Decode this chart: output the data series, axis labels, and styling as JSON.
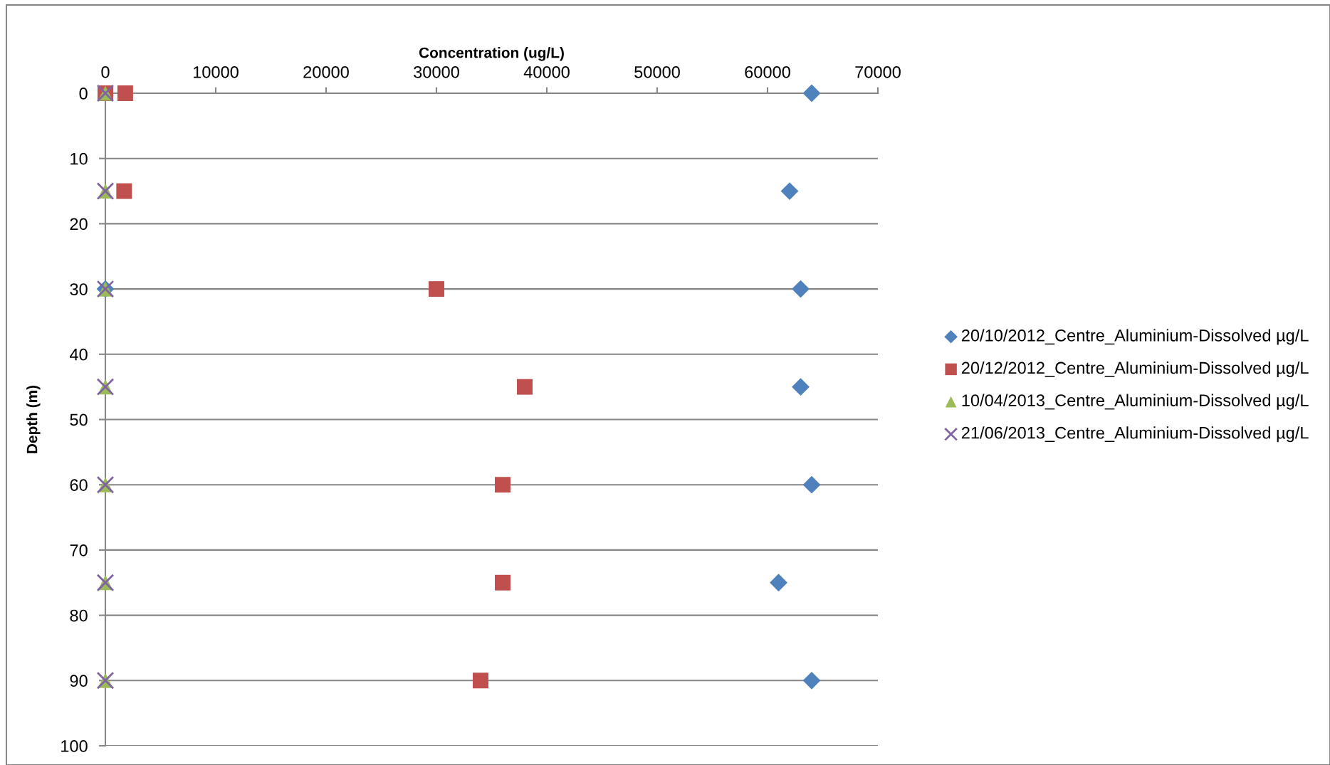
{
  "chart_data": {
    "type": "scatter",
    "xlabel": "Concentration (ug/L)",
    "ylabel": "Depth (m)",
    "xlim": [
      0,
      70000
    ],
    "xticks": [
      0,
      10000,
      20000,
      30000,
      40000,
      50000,
      60000,
      70000
    ],
    "ylim": [
      100,
      0
    ],
    "yticks": [
      0,
      10,
      20,
      30,
      40,
      50,
      60,
      70,
      80,
      90,
      100
    ],
    "grid": "y",
    "legend": "right",
    "series": [
      {
        "name": "20/10/2012_Centre_Aluminium-Dissolved µg/L",
        "color": "#4f81bd",
        "marker": "diamond",
        "x": [
          64000,
          62000,
          0,
          63000,
          63000,
          64000,
          61000,
          64000
        ],
        "values": [
          0,
          15,
          30,
          30,
          45,
          60,
          75,
          90
        ]
      },
      {
        "name": "20/12/2012_Centre_Aluminium-Dissolved µg/L",
        "color": "#c0504d",
        "marker": "square",
        "x": [
          0,
          1800,
          1700,
          30000,
          38000,
          36000,
          36000,
          34000
        ],
        "values": [
          0,
          0,
          15,
          30,
          45,
          60,
          75,
          90
        ]
      },
      {
        "name": "10/04/2013_Centre_Aluminium-Dissolved µg/L",
        "color": "#9bbb59",
        "marker": "triangle",
        "x": [
          0,
          0,
          0,
          0,
          0,
          0,
          0
        ],
        "values": [
          0,
          15,
          30,
          45,
          60,
          75,
          90
        ]
      },
      {
        "name": "21/06/2013_Centre_Aluminium-Dissolved µg/L",
        "color": "#8064a2",
        "marker": "cross",
        "x": [
          0,
          0,
          0,
          0,
          0,
          0,
          0
        ],
        "values": [
          0,
          15,
          30,
          45,
          60,
          75,
          90
        ]
      }
    ]
  }
}
